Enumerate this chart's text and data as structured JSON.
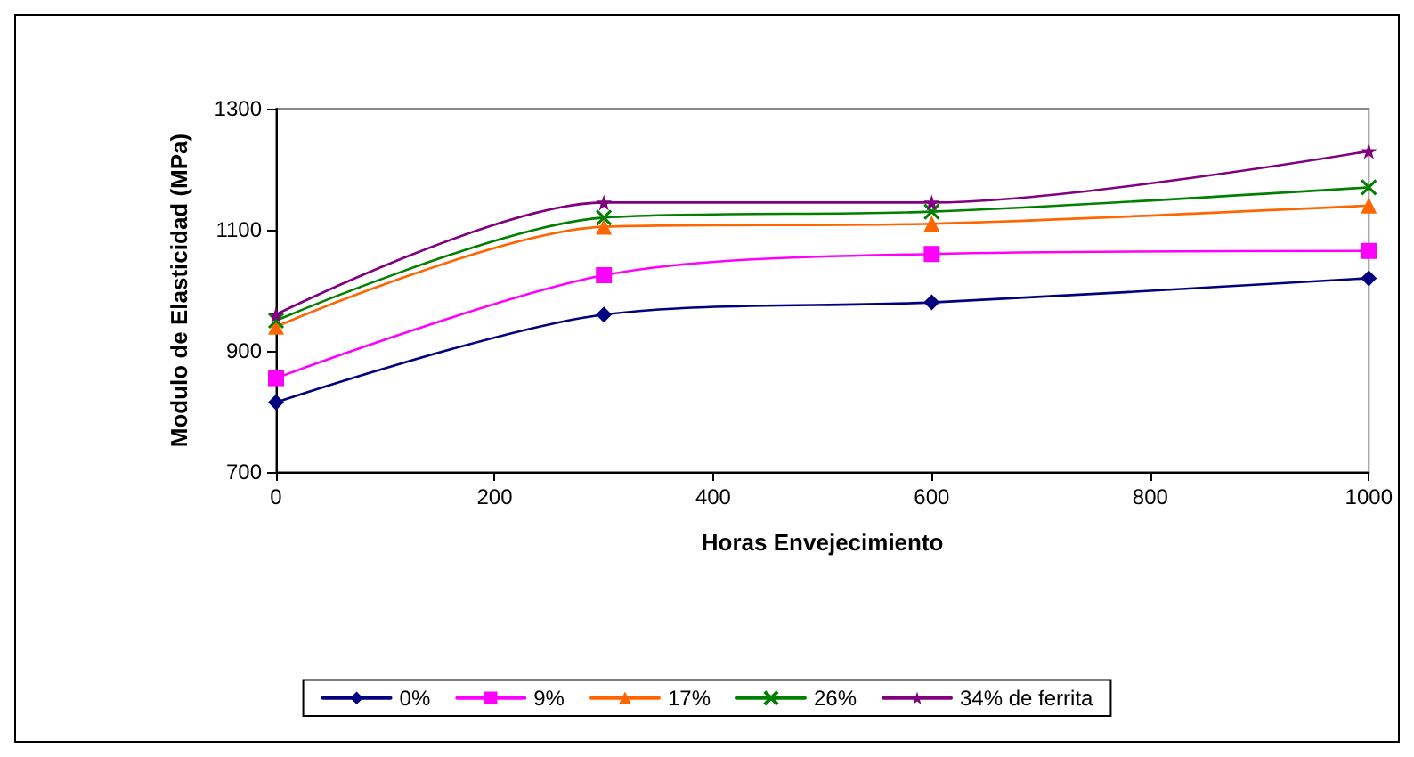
{
  "chart_data": {
    "type": "line",
    "xlabel": "Horas Envejecimiento",
    "ylabel": "Modulo de Elasticidad (MPa)",
    "x": [
      0,
      300,
      600,
      1000
    ],
    "xlim": [
      0,
      1000
    ],
    "xticks": [
      0,
      200,
      400,
      600,
      800,
      1000
    ],
    "ylim": [
      700,
      1300
    ],
    "yticks": [
      700,
      900,
      1100,
      1300
    ],
    "grid": false,
    "legend": "bottom",
    "line_style": "solid",
    "series": [
      {
        "name": "0%",
        "color": "#000080",
        "marker": "diamond",
        "values": [
          815,
          960,
          980,
          1020
        ]
      },
      {
        "name": "9%",
        "color": "#ff00ff",
        "marker": "square",
        "values": [
          855,
          1025,
          1060,
          1065
        ]
      },
      {
        "name": "17%",
        "color": "#ff6600",
        "marker": "triangle",
        "values": [
          940,
          1105,
          1110,
          1140
        ]
      },
      {
        "name": "26%",
        "color": "#008000",
        "marker": "cross",
        "values": [
          950,
          1120,
          1130,
          1170
        ]
      },
      {
        "name": "34% de ferrita",
        "color": "#800080",
        "marker": "star",
        "values": [
          960,
          1145,
          1145,
          1230
        ]
      }
    ]
  }
}
